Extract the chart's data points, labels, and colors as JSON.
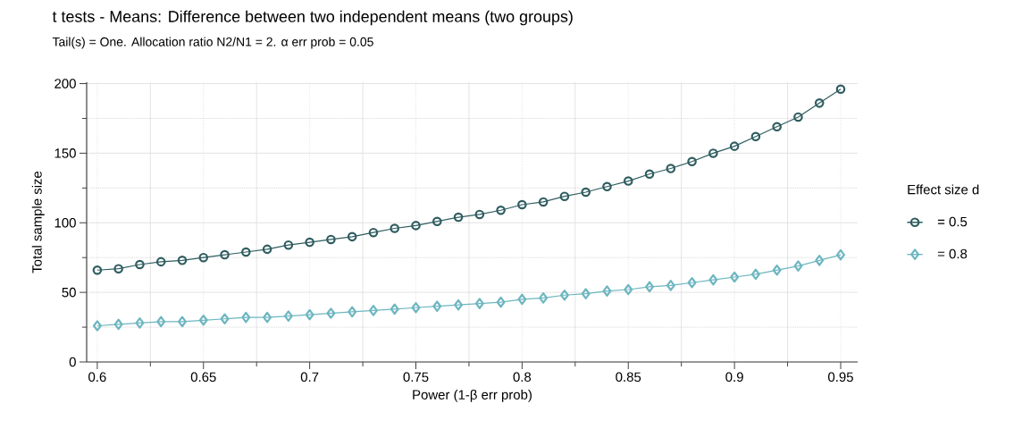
{
  "chart_data": {
    "type": "line",
    "title": "t tests - Means: Difference between two independent means (two groups)",
    "subtitle": "Tail(s) = One. Allocation ratio N2/N1 = 2. α err prob = 0.05",
    "xlabel": "Power (1-β err prob)",
    "ylabel": "Total sample size",
    "legend_title": "Effect size d",
    "x": [
      0.6,
      0.61,
      0.62,
      0.63,
      0.64,
      0.65,
      0.66,
      0.67,
      0.68,
      0.69,
      0.7,
      0.71,
      0.72,
      0.73,
      0.74,
      0.75,
      0.76,
      0.77,
      0.78,
      0.79,
      0.8,
      0.81,
      0.82,
      0.83,
      0.84,
      0.85,
      0.86,
      0.87,
      0.88,
      0.89,
      0.9,
      0.91,
      0.92,
      0.93,
      0.94,
      0.95
    ],
    "series": [
      {
        "name": "= 0.5",
        "color": "#2f5d60",
        "marker": "circle",
        "values": [
          66,
          67,
          70,
          72,
          73,
          75,
          77,
          79,
          81,
          84,
          86,
          88,
          90,
          93,
          96,
          98,
          101,
          104,
          106,
          109,
          113,
          115,
          119,
          122,
          126,
          130,
          135,
          139,
          144,
          150,
          155,
          162,
          169,
          176,
          186,
          196
        ]
      },
      {
        "name": "= 0.8",
        "color": "#6db6c0",
        "marker": "diamond",
        "values": [
          26,
          27,
          28,
          29,
          29,
          30,
          31,
          32,
          32,
          33,
          34,
          35,
          36,
          37,
          38,
          39,
          40,
          41,
          42,
          43,
          45,
          46,
          48,
          49,
          51,
          52,
          54,
          55,
          57,
          59,
          61,
          63,
          66,
          69,
          73,
          77
        ]
      }
    ],
    "xlim": [
      0.595,
      0.958
    ],
    "ylim": [
      0,
      201
    ],
    "xticks": [
      {
        "value": 0.6,
        "label": "0.6"
      },
      {
        "value": 0.65,
        "label": "0.65"
      },
      {
        "value": 0.7,
        "label": "0.7"
      },
      {
        "value": 0.75,
        "label": "0.75"
      },
      {
        "value": 0.8,
        "label": "0.8"
      },
      {
        "value": 0.85,
        "label": "0.85"
      },
      {
        "value": 0.9,
        "label": "0.9"
      },
      {
        "value": 0.95,
        "label": "0.95"
      }
    ],
    "yticks": [
      0,
      50,
      100,
      150,
      200
    ],
    "grid": true,
    "legend": "right",
    "line_style": "solid"
  }
}
